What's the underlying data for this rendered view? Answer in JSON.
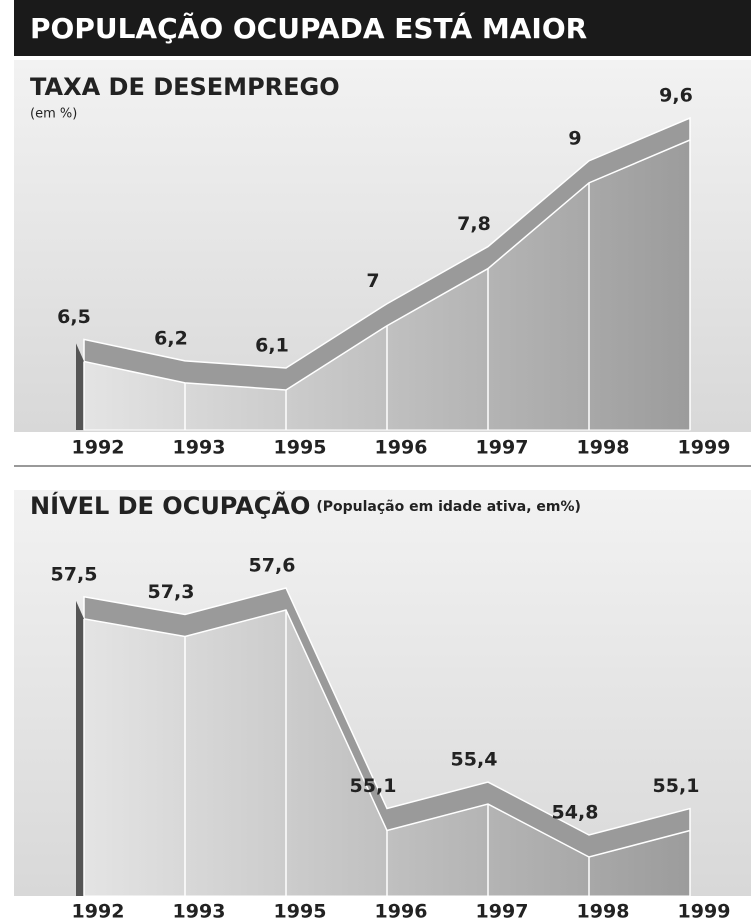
{
  "title": "POPULAÇÃO OCUPADA ESTÁ MAIOR",
  "chart_data": [
    {
      "type": "area",
      "title": "TAXA DE DESEMPREGO",
      "subtitle": "(em %)",
      "categories": [
        "1992",
        "1993",
        "1995",
        "1996",
        "1997",
        "1998",
        "1999"
      ],
      "values": [
        6.5,
        6.2,
        6.1,
        7,
        7.8,
        9,
        9.6
      ],
      "value_labels": [
        "6,5",
        "6,2",
        "6,1",
        "7",
        "7,8",
        "9",
        "9,6"
      ],
      "color": "#9a9a9a"
    },
    {
      "type": "area",
      "title": "NÍVEL DE OCUPAÇÃO",
      "subtitle": "(População em idade ativa, em%)",
      "categories": [
        "1992",
        "1993",
        "1995",
        "1996",
        "1997",
        "1998",
        "1999"
      ],
      "values": [
        57.5,
        57.3,
        57.6,
        55.1,
        55.4,
        54.8,
        55.1
      ],
      "value_labels": [
        "57,5",
        "57,3",
        "57,6",
        "55,1",
        "55,4",
        "54,8",
        "55,1"
      ],
      "color": "#9a9a9a"
    }
  ]
}
